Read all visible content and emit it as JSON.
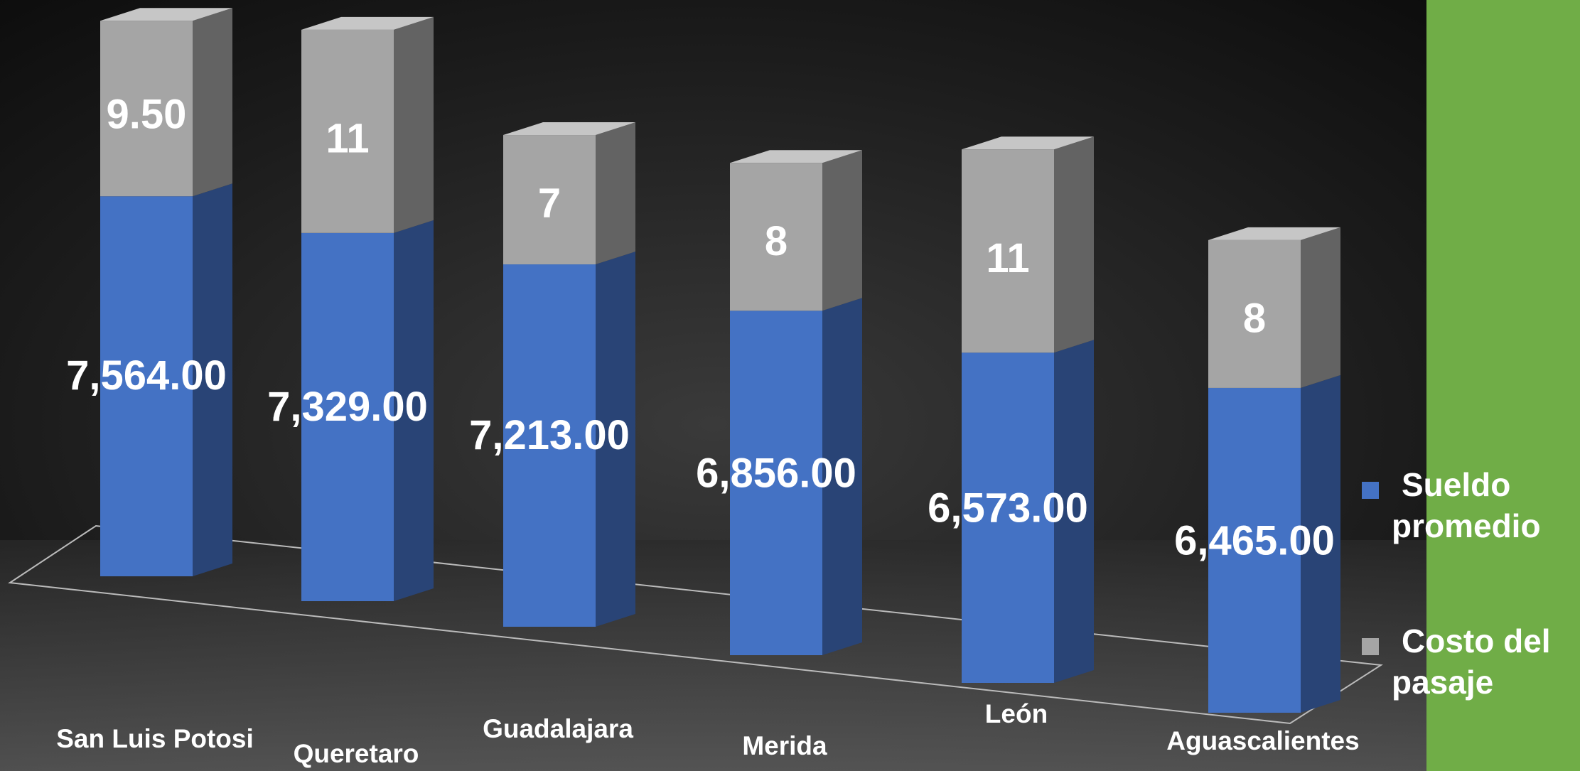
{
  "chart_data": {
    "type": "bar3d-stacked",
    "categories": [
      "San Luis Potosi",
      "Queretaro",
      "Guadalajara",
      "Merida",
      "León",
      "Aguascalientes"
    ],
    "series": [
      {
        "name": "Sueldo promedio",
        "color": "#4472c4",
        "values": [
          7564,
          7329,
          7213,
          6856,
          6573,
          6465
        ],
        "value_labels": [
          "7,564.00",
          "7,329.00",
          "7,213.00",
          "6,856.00",
          "6,573.00",
          "6,465.00"
        ]
      },
      {
        "name": "Costo del pasaje",
        "color": "#a5a5a5",
        "values": [
          9.5,
          11,
          7,
          8,
          11,
          8
        ],
        "value_labels": [
          "9.50",
          "11",
          "7",
          "8",
          "11",
          "8"
        ]
      }
    ],
    "legend": "right"
  }
}
